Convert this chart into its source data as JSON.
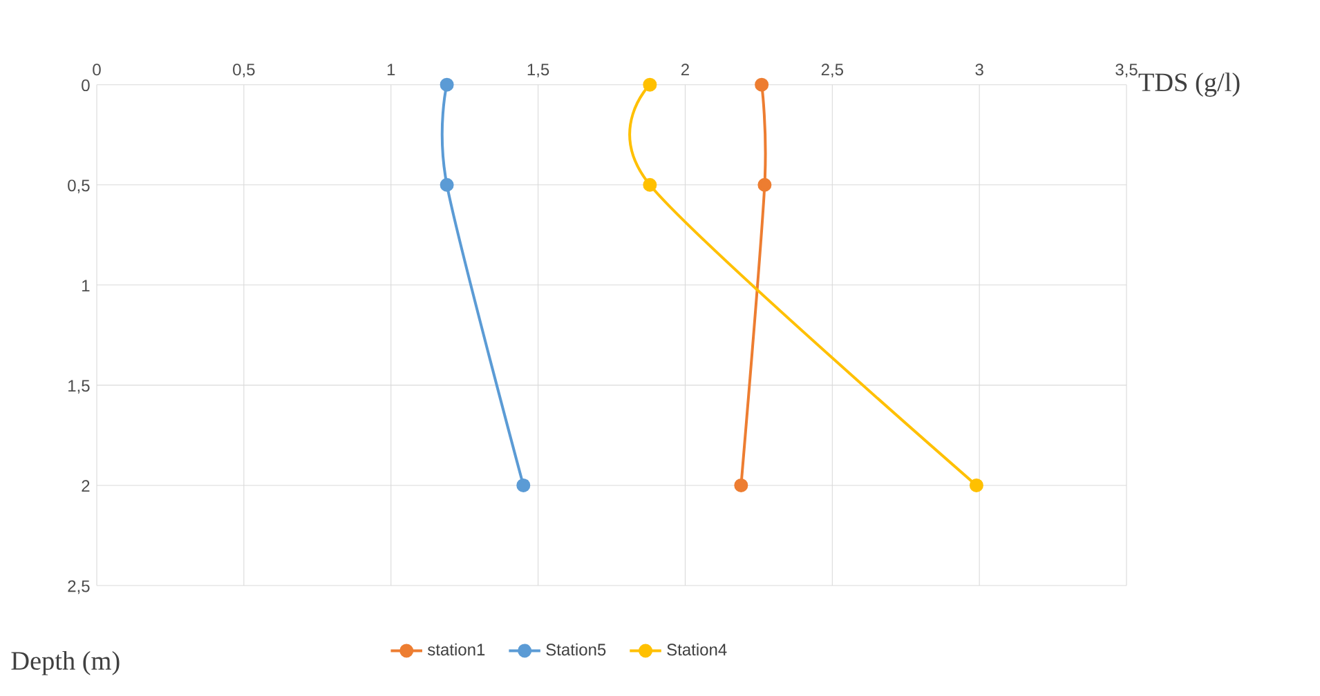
{
  "chart_data": {
    "type": "line",
    "xlabel": "TDS (g/l)",
    "ylabel": "Depth (m)",
    "xlim": [
      0,
      3.5
    ],
    "xticks": [
      0,
      {
        "value": 0.5,
        "label": "0,5"
      },
      1,
      {
        "value": 1.5,
        "label": "1,5"
      },
      2,
      {
        "value": 2.5,
        "label": "2,5"
      },
      3,
      {
        "value": 3.5,
        "label": "3,5"
      }
    ],
    "ylim": [
      2.5,
      0
    ],
    "yticks": [
      0,
      {
        "value": 0.5,
        "label": "0,5"
      },
      1,
      {
        "value": 1.5,
        "label": "1,5"
      },
      2,
      {
        "value": 2.5,
        "label": "2,5"
      }
    ],
    "grid": true,
    "legend": "bottom",
    "marker": "circle",
    "line_style": "solid",
    "series": [
      {
        "name": "station1",
        "color": "#ed7d31",
        "x": [
          2.26,
          2.27,
          2.19
        ],
        "values": [
          0,
          0.5,
          2
        ]
      },
      {
        "name": "Station5",
        "color": "#5b9bd5",
        "x": [
          1.19,
          1.19,
          1.45
        ],
        "values": [
          0,
          0.5,
          2
        ]
      },
      {
        "name": "Station4",
        "color": "#ffc000",
        "x": [
          1.88,
          1.88,
          2.99
        ],
        "values": [
          0,
          0.5,
          2
        ]
      }
    ]
  }
}
